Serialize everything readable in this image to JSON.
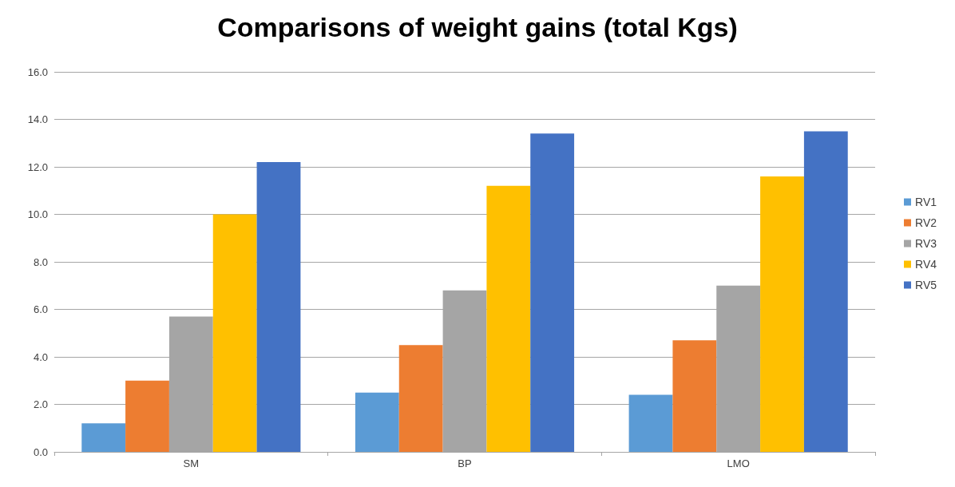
{
  "chart_data": {
    "type": "bar",
    "title": "Comparisons of weight gains (total Kgs)",
    "categories": [
      "SM",
      "BP",
      "LMO"
    ],
    "series": [
      {
        "name": "RV1",
        "color": "#5b9bd5",
        "values": [
          1.2,
          2.5,
          2.4
        ]
      },
      {
        "name": "RV2",
        "color": "#ed7d31",
        "values": [
          3.0,
          4.5,
          4.7
        ]
      },
      {
        "name": "RV3",
        "color": "#a5a5a5",
        "values": [
          5.7,
          6.8,
          7.0
        ]
      },
      {
        "name": "RV4",
        "color": "#ffc000",
        "values": [
          10.0,
          11.2,
          11.6
        ]
      },
      {
        "name": "RV5",
        "color": "#4472c4",
        "values": [
          12.2,
          13.4,
          13.5
        ]
      }
    ],
    "ylim": [
      0,
      16
    ],
    "yticks": [
      {
        "value": 0,
        "label": "0.0"
      },
      {
        "value": 2,
        "label": "2.0"
      },
      {
        "value": 4,
        "label": "4.0"
      },
      {
        "value": 6,
        "label": "6.0"
      },
      {
        "value": 8,
        "label": "8.0"
      },
      {
        "value": 10,
        "label": "10.0"
      },
      {
        "value": 12,
        "label": "12.0"
      },
      {
        "value": 14,
        "label": "14.0"
      },
      {
        "value": 16,
        "label": "16.0"
      }
    ],
    "grid": "y",
    "legend": "right"
  }
}
